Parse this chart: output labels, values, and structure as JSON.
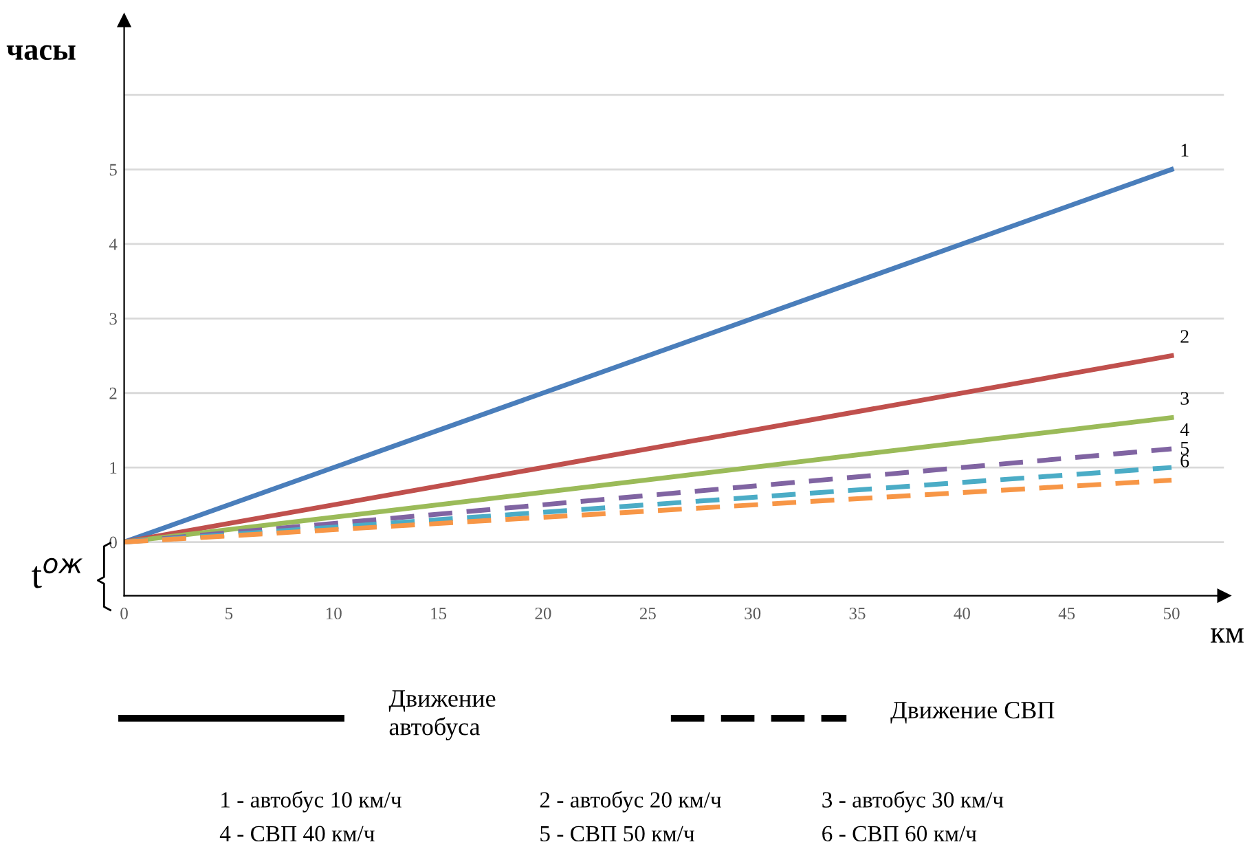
{
  "chart_data": {
    "type": "line",
    "xlabel": "км",
    "ylabel": "часы",
    "x": [
      0,
      50
    ],
    "series": [
      {
        "name": "1",
        "color": "#4a7ebb",
        "values": [
          0,
          5
        ],
        "line_style": "solid"
      },
      {
        "name": "2",
        "color": "#c0504d",
        "values": [
          0,
          2.5
        ],
        "line_style": "solid"
      },
      {
        "name": "3",
        "color": "#9bbb59",
        "values": [
          0,
          1.67
        ],
        "line_style": "solid"
      },
      {
        "name": "4",
        "color": "#8064a2",
        "values": [
          0,
          1.25
        ],
        "line_style": "dashed"
      },
      {
        "name": "5",
        "color": "#4bacc6",
        "values": [
          0,
          1
        ],
        "line_style": "dashed"
      },
      {
        "name": "6",
        "color": "#f79646",
        "values": [
          0,
          0.83
        ],
        "line_style": "dashed"
      }
    ],
    "xlim": [
      0,
      52.5
    ],
    "ylim": [
      -0.72,
      7
    ],
    "xticks": [
      0,
      5,
      10,
      15,
      20,
      25,
      30,
      35,
      40,
      45,
      50
    ],
    "yticks": [
      0,
      1,
      2,
      3,
      4,
      5,
      {
        "value": 6,
        "label": null
      }
    ],
    "grid": "y",
    "legend": false,
    "annotations": [
      "t$^{ож}$",
      "Движение автобуса",
      "Движение СВП",
      "1 - автобус 10 км/ч",
      "2 - автобус 20 км/ч",
      "3 - автобус 30 км/ч",
      "4 - СВП 40 км/ч",
      "5 - СВП 50 км/ч",
      "6 - СВП 60 км/ч"
    ]
  }
}
